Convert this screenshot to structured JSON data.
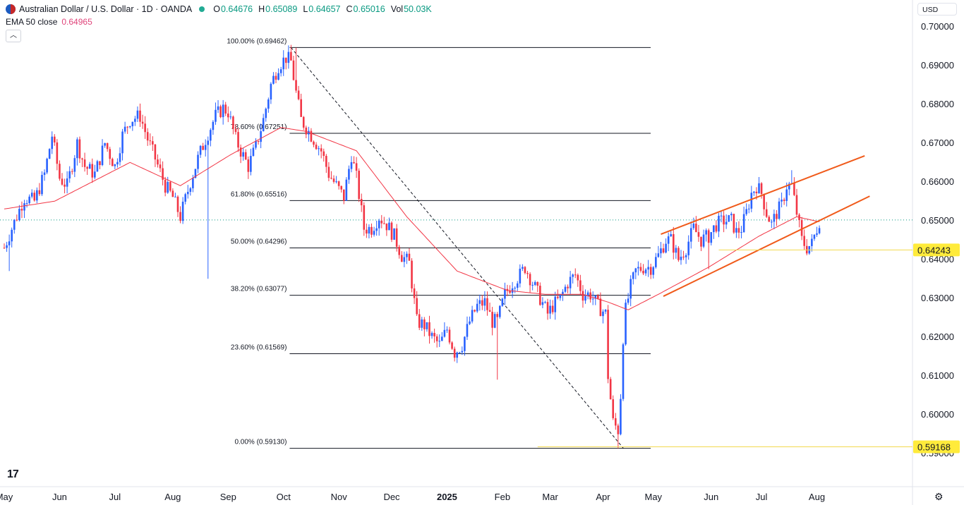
{
  "header": {
    "title": "Australian Dollar / U.S. Dollar · 1D · OANDA",
    "ohlc": [
      {
        "k": "O",
        "v": "0.64676"
      },
      {
        "k": "H",
        "v": "0.65089"
      },
      {
        "k": "L",
        "v": "0.64657"
      },
      {
        "k": "C",
        "v": "0.65016"
      },
      {
        "k": "Vol",
        "v": "50.03K"
      }
    ],
    "ema_label": "EMA 50 close",
    "ema_value": "0.64965",
    "collapse_glyph": "︿",
    "currency": "USD",
    "brand": "17",
    "settings_icon": "⚙"
  },
  "chart_data": {
    "type": "candlestick",
    "instrument": "AUD/USD",
    "interval": "1D",
    "ylim": [
      0.587,
      0.702
    ],
    "y_ticks": [
      "0.70000",
      "0.69000",
      "0.68000",
      "0.67000",
      "0.66000",
      "0.65000",
      "0.64000",
      "0.63000",
      "0.62000",
      "0.61000",
      "0.60000",
      "0.59000"
    ],
    "y_tick_values": [
      0.7,
      0.69,
      0.68,
      0.67,
      0.66,
      0.65,
      0.64,
      0.63,
      0.62,
      0.61,
      0.6,
      0.59
    ],
    "x_ticks": [
      "May",
      "Jun",
      "Jul",
      "Aug",
      "Sep",
      "Oct",
      "Nov",
      "Dec",
      "2025",
      "Feb",
      "Mar",
      "Apr",
      "May",
      "Jun",
      "Jul",
      "Aug"
    ],
    "x_tick_days": [
      0,
      22,
      44,
      67,
      89,
      111,
      133,
      154,
      176,
      198,
      217,
      238,
      258,
      281,
      301,
      323
    ],
    "fib_levels": [
      {
        "label": "100.00% (0.69462)",
        "price": 0.69462
      },
      {
        "label": "78.60% (0.67251)",
        "price": 0.67251
      },
      {
        "label": "61.80% (0.65516)",
        "price": 0.65516
      },
      {
        "label": "50.00% (0.64296)",
        "price": 0.64296
      },
      {
        "label": "38.20% (0.63077)",
        "price": 0.63077
      },
      {
        "label": "23.60% (0.61569)",
        "price": 0.61569
      },
      {
        "label": "0.00% (0.59130)",
        "price": 0.5913
      }
    ],
    "fib_start_day": 114,
    "fib_end_day": 245,
    "price_labels": [
      {
        "text": "0.64243",
        "price": 0.64243
      },
      {
        "text": "0.59168",
        "price": 0.59168
      }
    ],
    "last_price": 0.65016,
    "close_anchors": [
      [
        0,
        0.643
      ],
      [
        3,
        0.648
      ],
      [
        8,
        0.656
      ],
      [
        12,
        0.655
      ],
      [
        16,
        0.662
      ],
      [
        19,
        0.672
      ],
      [
        22,
        0.661
      ],
      [
        25,
        0.659
      ],
      [
        29,
        0.67
      ],
      [
        32,
        0.664
      ],
      [
        36,
        0.662
      ],
      [
        40,
        0.67
      ],
      [
        44,
        0.664
      ],
      [
        47,
        0.672
      ],
      [
        50,
        0.676
      ],
      [
        54,
        0.677
      ],
      [
        57,
        0.671
      ],
      [
        60,
        0.666
      ],
      [
        64,
        0.659
      ],
      [
        67,
        0.656
      ],
      [
        70,
        0.651
      ],
      [
        74,
        0.66
      ],
      [
        77,
        0.666
      ],
      [
        80,
        0.671
      ],
      [
        84,
        0.677
      ],
      [
        87,
        0.679
      ],
      [
        89,
        0.678
      ],
      [
        92,
        0.671
      ],
      [
        94,
        0.668
      ],
      [
        97,
        0.664
      ],
      [
        100,
        0.669
      ],
      [
        103,
        0.676
      ],
      [
        106,
        0.685
      ],
      [
        109,
        0.69
      ],
      [
        112,
        0.692
      ],
      [
        114,
        0.691
      ],
      [
        116,
        0.683
      ],
      [
        118,
        0.676
      ],
      [
        120,
        0.674
      ],
      [
        123,
        0.671
      ],
      [
        126,
        0.668
      ],
      [
        129,
        0.662
      ],
      [
        132,
        0.659
      ],
      [
        135,
        0.656
      ],
      [
        138,
        0.667
      ],
      [
        140,
        0.661
      ],
      [
        143,
        0.648
      ],
      [
        146,
        0.648
      ],
      [
        149,
        0.651
      ],
      [
        152,
        0.649
      ],
      [
        155,
        0.646
      ],
      [
        158,
        0.641
      ],
      [
        161,
        0.639
      ],
      [
        164,
        0.624
      ],
      [
        167,
        0.623
      ],
      [
        170,
        0.62
      ],
      [
        173,
        0.618
      ],
      [
        176,
        0.622
      ],
      [
        179,
        0.616
      ],
      [
        182,
        0.618
      ],
      [
        185,
        0.624
      ],
      [
        188,
        0.628
      ],
      [
        191,
        0.629
      ],
      [
        194,
        0.624
      ],
      [
        196,
        0.624
      ],
      [
        199,
        0.631
      ],
      [
        202,
        0.634
      ],
      [
        205,
        0.636
      ],
      [
        207,
        0.638
      ],
      [
        210,
        0.634
      ],
      [
        213,
        0.63
      ],
      [
        216,
        0.626
      ],
      [
        218,
        0.628
      ],
      [
        221,
        0.63
      ],
      [
        224,
        0.634
      ],
      [
        227,
        0.636
      ],
      [
        230,
        0.631
      ],
      [
        233,
        0.631
      ],
      [
        236,
        0.628
      ],
      [
        239,
        0.626
      ],
      [
        240,
        0.61
      ],
      [
        242,
        0.598
      ],
      [
        244,
        0.596
      ],
      [
        245,
        0.605
      ],
      [
        246,
        0.62
      ],
      [
        247,
        0.627
      ],
      [
        249,
        0.633
      ],
      [
        251,
        0.637
      ],
      [
        254,
        0.638
      ],
      [
        257,
        0.638
      ],
      [
        260,
        0.641
      ],
      [
        263,
        0.645
      ],
      [
        265,
        0.645
      ],
      [
        268,
        0.64
      ],
      [
        271,
        0.643
      ],
      [
        274,
        0.648
      ],
      [
        277,
        0.645
      ],
      [
        280,
        0.646
      ],
      [
        283,
        0.649
      ],
      [
        286,
        0.65
      ],
      [
        289,
        0.65
      ],
      [
        291,
        0.647
      ],
      [
        293,
        0.648
      ],
      [
        295,
        0.652
      ],
      [
        297,
        0.657
      ],
      [
        299,
        0.659
      ],
      [
        301,
        0.657
      ],
      [
        303,
        0.652
      ],
      [
        305,
        0.649
      ],
      [
        307,
        0.652
      ],
      [
        309,
        0.654
      ],
      [
        311,
        0.659
      ],
      [
        313,
        0.659
      ],
      [
        315,
        0.652
      ],
      [
        317,
        0.645
      ],
      [
        319,
        0.643
      ],
      [
        321,
        0.644
      ],
      [
        322,
        0.646
      ],
      [
        323,
        0.648
      ],
      [
        324,
        0.65
      ]
    ],
    "spikes": [
      {
        "day": 2,
        "low": 0.637
      },
      {
        "day": 81,
        "low": 0.635
      },
      {
        "day": 116,
        "high": 0.6946
      },
      {
        "day": 196,
        "low": 0.609
      },
      {
        "day": 244,
        "low": 0.5913
      },
      {
        "day": 280,
        "low": 0.6375
      },
      {
        "day": 313,
        "high": 0.663
      }
    ],
    "ema_anchors": [
      [
        0,
        0.653
      ],
      [
        20,
        0.655
      ],
      [
        50,
        0.665
      ],
      [
        70,
        0.659
      ],
      [
        90,
        0.667
      ],
      [
        110,
        0.674
      ],
      [
        120,
        0.673
      ],
      [
        140,
        0.668
      ],
      [
        160,
        0.651
      ],
      [
        180,
        0.637
      ],
      [
        200,
        0.632
      ],
      [
        215,
        0.631
      ],
      [
        230,
        0.631
      ],
      [
        240,
        0.629
      ],
      [
        248,
        0.627
      ],
      [
        260,
        0.631
      ],
      [
        280,
        0.638
      ],
      [
        300,
        0.646
      ],
      [
        315,
        0.651
      ],
      [
        324,
        0.6497
      ]
    ],
    "channel_lines": [
      {
        "start_day": 261,
        "start_price": 0.6465,
        "end_day": 342,
        "end_price": 0.6667
      },
      {
        "start_day": 262,
        "start_price": 0.6305,
        "end_day": 344,
        "end_price": 0.6563
      }
    ],
    "support_lines": [
      {
        "start_day": 284,
        "end_day": 355,
        "price": 0.64243
      },
      {
        "start_day": 212,
        "end_day": 355,
        "price": 0.59168
      }
    ],
    "colors": {
      "up": "#2962ff",
      "down": "#f23645",
      "ema": "#f23645",
      "fib": "#131722",
      "channel": "#f05a1a",
      "support": "#f2d94e",
      "label_bg": "#ffeb3b"
    }
  }
}
